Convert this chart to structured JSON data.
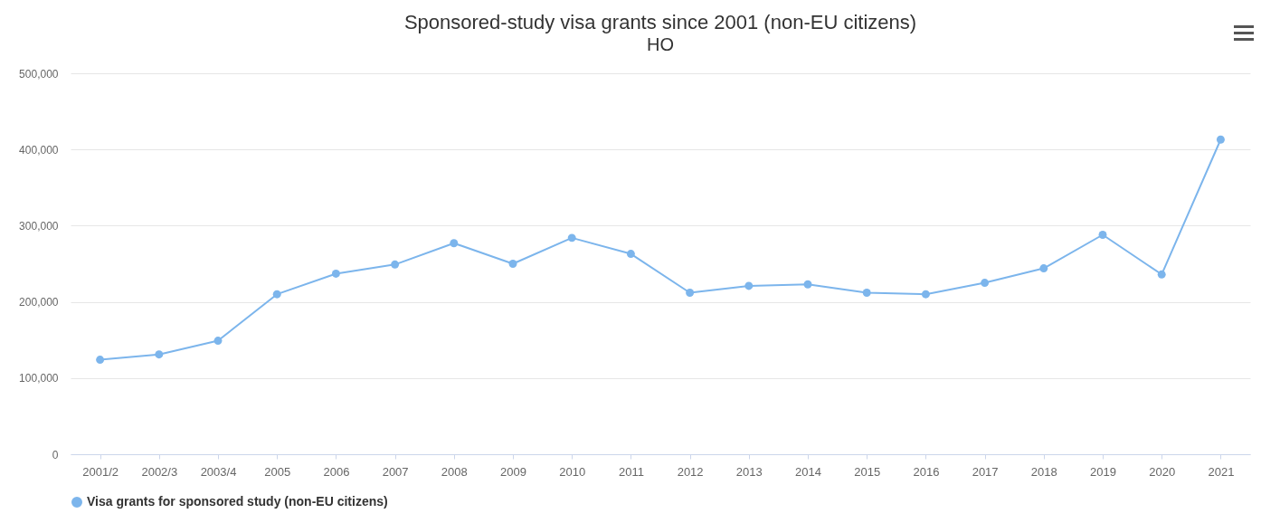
{
  "chart_data": {
    "type": "line",
    "title": "Sponsored-study visa grants since 2001 (non-EU citizens)",
    "subtitle": "HO",
    "categories": [
      "2001/2",
      "2002/3",
      "2003/4",
      "2005",
      "2006",
      "2007",
      "2008",
      "2009",
      "2010",
      "2011",
      "2012",
      "2013",
      "2014",
      "2015",
      "2016",
      "2017",
      "2018",
      "2019",
      "2020",
      "2021"
    ],
    "series": [
      {
        "name": "Visa grants for sponsored study (non-EU citizens)",
        "color": "#7cb5ec",
        "values": [
          124000,
          131000,
          149000,
          210000,
          237000,
          249000,
          277000,
          250000,
          284000,
          263000,
          212000,
          221000,
          223000,
          212000,
          210000,
          225000,
          244000,
          288000,
          236000,
          413000
        ]
      }
    ],
    "ylim": [
      0,
      500000
    ],
    "yticks": [
      {
        "value": 0,
        "label": "0"
      },
      {
        "value": 100000,
        "label": "100,000"
      },
      {
        "value": 200000,
        "label": "200,000"
      },
      {
        "value": 300000,
        "label": "300,000"
      },
      {
        "value": 400000,
        "label": "400,000"
      },
      {
        "value": 500000,
        "label": "500,000"
      }
    ],
    "grid": "y",
    "legend": "bottom",
    "marker": "circle",
    "line_style": "solid"
  }
}
